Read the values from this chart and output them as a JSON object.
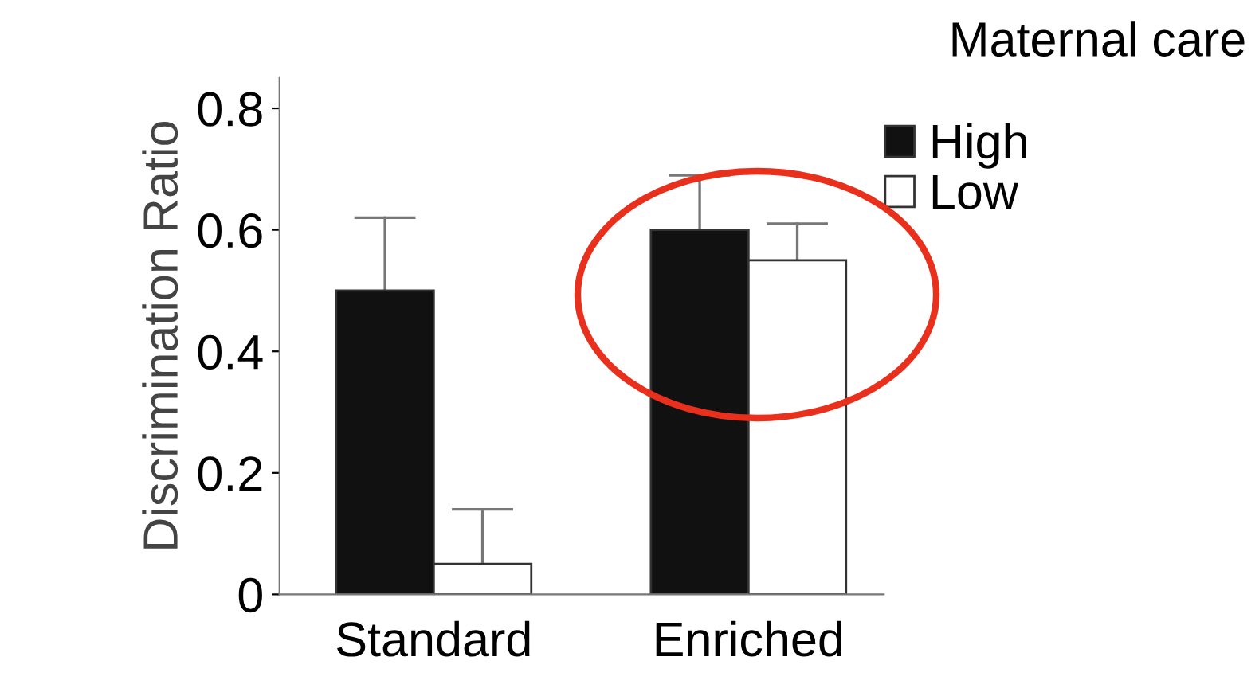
{
  "chart_data": {
    "type": "bar",
    "ylabel": "Discrimination Ratio",
    "legend_title": "Maternal care",
    "categories": [
      "Standard",
      "Enriched"
    ],
    "series": [
      {
        "name": "High",
        "color": "#111111",
        "values": [
          0.5,
          0.6
        ],
        "errors": [
          [
            0.5,
            0.62
          ],
          [
            0.6,
            0.69
          ]
        ]
      },
      {
        "name": "Low",
        "color": "#ffffff",
        "values": [
          0.05,
          0.55
        ],
        "errors": [
          [
            0.05,
            0.14
          ],
          [
            0.55,
            0.61
          ]
        ]
      }
    ],
    "ylim": [
      0,
      0.85
    ],
    "yticks": [
      0,
      0.2,
      0.4,
      0.6,
      0.8
    ],
    "grid": false,
    "legend": "top right"
  }
}
